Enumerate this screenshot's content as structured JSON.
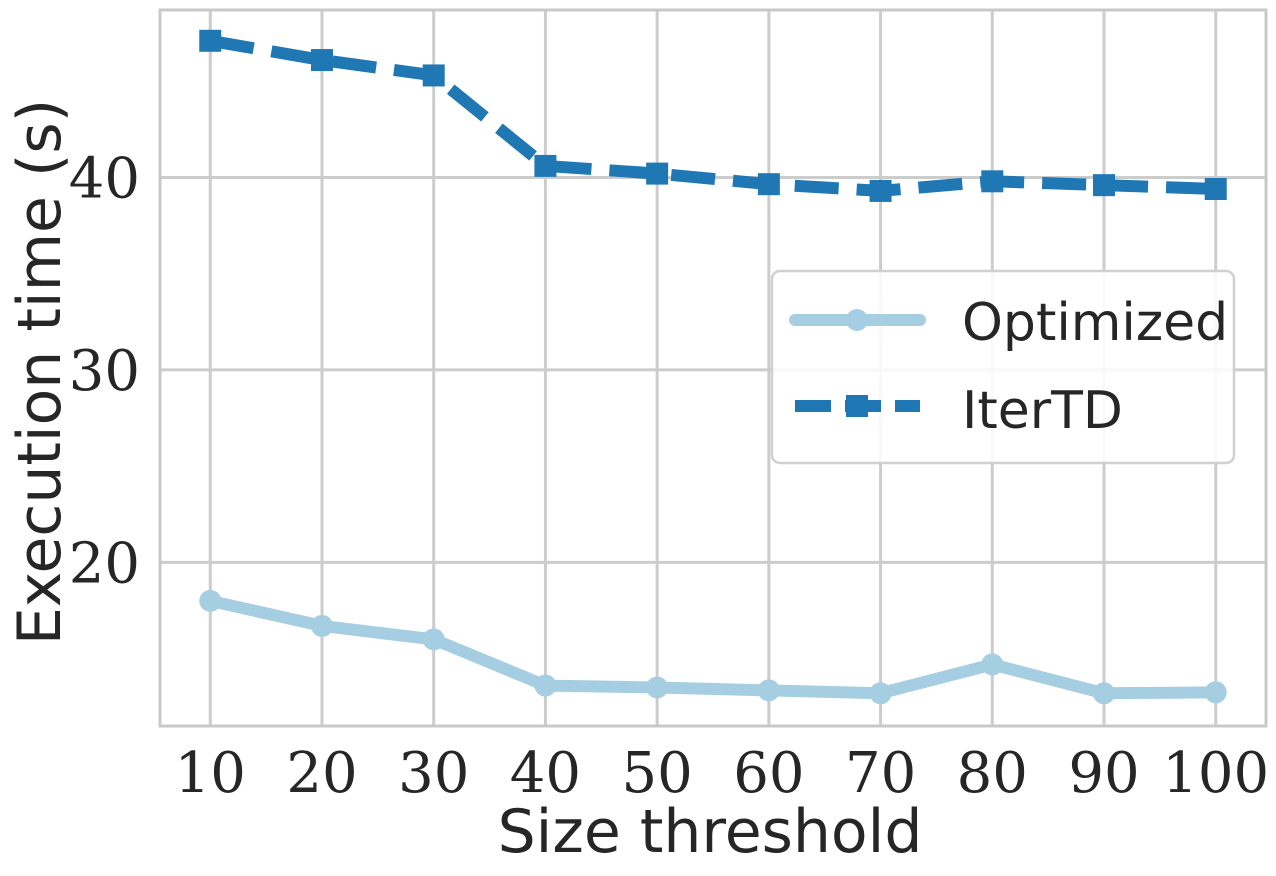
{
  "chart_data": {
    "type": "line",
    "xlabel": "Size threshold",
    "ylabel": "Execution time (s)",
    "x": [
      10,
      20,
      30,
      40,
      50,
      60,
      70,
      80,
      90,
      100
    ],
    "xticks": [
      "10",
      "20",
      "30",
      "40",
      "50",
      "60",
      "70",
      "80",
      "90",
      "100"
    ],
    "yticks": [
      "20",
      "30",
      "40"
    ],
    "ytick_values": [
      20,
      30,
      40
    ],
    "xlim": [
      5.5,
      104.5
    ],
    "ylim": [
      11.5,
      48.7
    ],
    "grid": true,
    "legend_position": "center-right",
    "series": [
      {
        "name": "Optimized",
        "color": "#a6cee3",
        "marker": "circle",
        "linestyle": "solid",
        "values": [
          18.0,
          16.7,
          16.0,
          13.6,
          13.5,
          13.35,
          13.2,
          14.7,
          13.2,
          13.25
        ]
      },
      {
        "name": "IterTD",
        "color": "#1f78b4",
        "marker": "square",
        "linestyle": "dashed",
        "values": [
          47.1,
          46.1,
          45.3,
          40.6,
          40.2,
          39.65,
          39.3,
          39.8,
          39.6,
          39.4
        ]
      }
    ]
  }
}
